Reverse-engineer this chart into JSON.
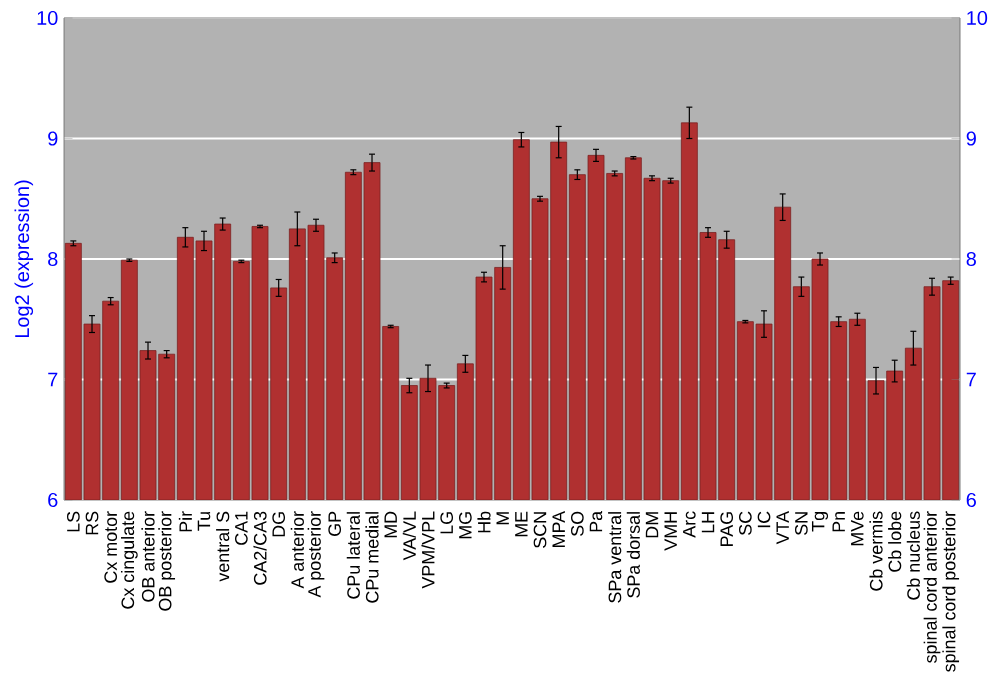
{
  "chart_data": {
    "type": "bar",
    "ylabel": "Log2 (expression)",
    "categories": [
      "LS",
      "RS",
      "Cx motor",
      "Cx cingulate",
      "OB anterior",
      "OB posterior",
      "Pir",
      "Tu",
      "ventral S",
      "CA1",
      "CA2/CA3",
      "DG",
      "A anterior",
      "A posterior",
      "GP",
      "CPu lateral",
      "CPu medial",
      "MD",
      "VA/VL",
      "VPM/VPL",
      "LG",
      "MG",
      "Hb",
      "M",
      "ME",
      "SCN",
      "MPA",
      "SO",
      "Pa",
      "SPa ventral",
      "SPa dorsal",
      "DM",
      "VMH",
      "Arc",
      "LH",
      "PAG",
      "SC",
      "IC",
      "VTA",
      "SN",
      "Tg",
      "Pn",
      "MVe",
      "Cb vermis",
      "Cb lobe",
      "Cb nucleus",
      "spinal cord anterior",
      "spinal cord posterior"
    ],
    "values": [
      8.13,
      7.46,
      7.65,
      7.99,
      7.24,
      7.21,
      8.18,
      8.15,
      8.29,
      7.98,
      8.27,
      7.76,
      8.25,
      8.28,
      8.01,
      8.72,
      8.8,
      7.44,
      6.95,
      7.01,
      6.95,
      7.13,
      7.85,
      7.93,
      8.99,
      8.5,
      8.97,
      8.7,
      8.86,
      8.71,
      8.84,
      8.67,
      8.65,
      9.13,
      8.22,
      8.16,
      7.48,
      7.46,
      8.43,
      7.77,
      8.0,
      7.48,
      7.5,
      6.99,
      7.07,
      7.26,
      7.77,
      7.82
    ],
    "errors": [
      0.02,
      0.07,
      0.03,
      0.01,
      0.07,
      0.03,
      0.08,
      0.08,
      0.05,
      0.01,
      0.01,
      0.07,
      0.14,
      0.05,
      0.04,
      0.02,
      0.07,
      0.01,
      0.06,
      0.11,
      0.02,
      0.07,
      0.04,
      0.18,
      0.06,
      0.02,
      0.13,
      0.04,
      0.05,
      0.02,
      0.01,
      0.02,
      0.02,
      0.13,
      0.04,
      0.07,
      0.01,
      0.11,
      0.11,
      0.08,
      0.05,
      0.04,
      0.05,
      0.11,
      0.09,
      0.14,
      0.07,
      0.03
    ],
    "color": "#b03030",
    "ylim": [
      6,
      10
    ],
    "yticks": [
      6,
      7,
      8,
      9,
      10
    ],
    "y2lim": [
      6,
      10
    ],
    "y2ticks": [
      6,
      7,
      8,
      9,
      10
    ],
    "grid": "y"
  }
}
